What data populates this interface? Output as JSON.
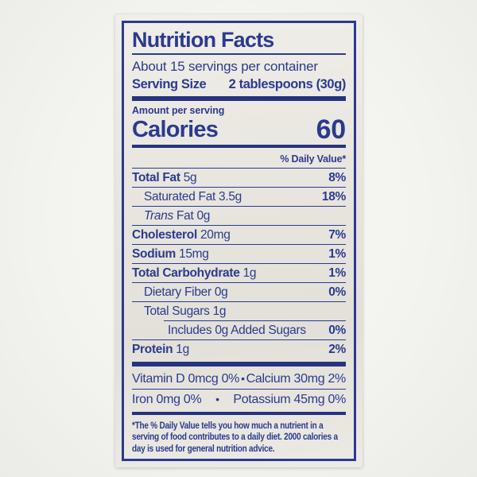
{
  "colors": {
    "ink": "#2b3a8f",
    "bar": "#26337f",
    "paper": "#eae7e1",
    "backdrop": "#f4f4f2"
  },
  "label": {
    "title": "Nutrition Facts",
    "servings_per_container": "About 15 servings per container",
    "serving_size": {
      "label": "Serving Size",
      "value": "2 tablespoons (30g)"
    },
    "amount_per_serving": "Amount per serving",
    "calories": {
      "label": "Calories",
      "value": "60"
    },
    "daily_value_header": "% Daily Value*",
    "rows": [
      {
        "name": "Total Fat",
        "rest": " 5g",
        "dv": "8%",
        "bold": true,
        "italic": false,
        "indent": 0,
        "rule_indent": false
      },
      {
        "name": "Saturated Fat",
        "rest": " 3.5g",
        "dv": "18%",
        "bold": false,
        "italic": false,
        "indent": 1,
        "rule_indent": false
      },
      {
        "name": "Trans",
        "rest": " Fat 0g",
        "dv": "",
        "bold": false,
        "italic": true,
        "indent": 1,
        "rule_indent": false
      },
      {
        "name": "Cholesterol",
        "rest": " 20mg",
        "dv": "7%",
        "bold": true,
        "italic": false,
        "indent": 0,
        "rule_indent": false
      },
      {
        "name": "Sodium",
        "rest": " 15mg",
        "dv": "1%",
        "bold": true,
        "italic": false,
        "indent": 0,
        "rule_indent": false
      },
      {
        "name": "Total Carbohydrate",
        "rest": " 1g",
        "dv": "1%",
        "bold": true,
        "italic": false,
        "indent": 0,
        "rule_indent": false
      },
      {
        "name": "Dietary Fiber",
        "rest": " 0g",
        "dv": "0%",
        "bold": false,
        "italic": false,
        "indent": 1,
        "rule_indent": false
      },
      {
        "name": "Total Sugars",
        "rest": " 1g",
        "dv": "",
        "bold": false,
        "italic": false,
        "indent": 1,
        "rule_indent": false
      },
      {
        "name": "Includes 0g Added Sugars",
        "rest": "",
        "dv": "0%",
        "bold": false,
        "italic": false,
        "indent": 2,
        "rule_indent": true
      },
      {
        "name": "Protein",
        "rest": " 1g",
        "dv": "2%",
        "bold": true,
        "italic": false,
        "indent": 0,
        "rule_indent": false
      }
    ],
    "micronutrients": {
      "bullet": "•",
      "rows": [
        {
          "left": "Vitamin D 0mcg 0%",
          "right": "Calcium 30mg 2%"
        },
        {
          "left": "Iron 0mg 0%",
          "right": "Potassium 45mg 0%"
        }
      ]
    },
    "footnote": "*The % Daily Value tells you how much a nutrient in a serving of food contributes to a daily diet. 2000 calories a day is used for general nutrition advice."
  }
}
